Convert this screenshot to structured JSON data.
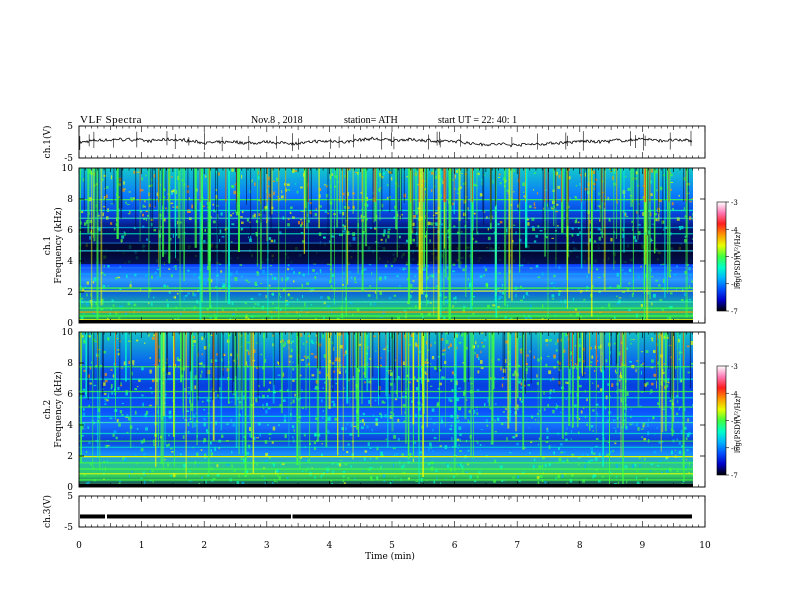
{
  "header": {
    "title": "VLF  Spectra",
    "date": "Nov.8  , 2018",
    "station": "station= ATH",
    "start": "start  UT  =    22: 40: 1"
  },
  "chart_data": [
    {
      "type": "line",
      "panel": "ch1-waveform",
      "ylabel": "ch.1(V)",
      "ylim": [
        -5,
        5
      ],
      "yticks": [
        "5",
        "-5"
      ],
      "xlim": [
        0,
        10
      ],
      "note": "noisy trace near 0 V with occasional spikes"
    },
    {
      "type": "heatmap",
      "panel": "ch1-spectrogram",
      "ylabel": "ch.1\nFrequency  (kHz)",
      "ylim": [
        0,
        10
      ],
      "yticks": [
        "0",
        "2",
        "4",
        "6",
        "8",
        "10"
      ],
      "xlim": [
        0,
        10
      ],
      "colorbar": {
        "label": "log(PSD)(V²/Hz)",
        "ticks": [
          "-3",
          "-4",
          "-5",
          "-6",
          "-7"
        ],
        "range": [
          -7,
          -3
        ]
      }
    },
    {
      "type": "heatmap",
      "panel": "ch2-spectrogram",
      "ylabel": "ch.2\nFrequency  (kHz)",
      "ylim": [
        0,
        10
      ],
      "yticks": [
        "0",
        "2",
        "4",
        "6",
        "8",
        "10"
      ],
      "xlim": [
        0,
        10
      ],
      "colorbar": {
        "label": "log(PSD)(V²/Hz)",
        "ticks": [
          "-3",
          "-4",
          "-5",
          "-6",
          "-7"
        ],
        "range": [
          -7,
          -3
        ]
      }
    },
    {
      "type": "line",
      "panel": "ch3-waveform",
      "ylabel": "ch.3(V)",
      "ylim": [
        -5,
        5
      ],
      "yticks": [
        "5",
        "-5"
      ],
      "xlim": [
        0,
        10
      ],
      "values_note": "constant trace at about -1.6 V",
      "level": -1.6
    }
  ],
  "xaxis": {
    "label": "Time  (min)",
    "ticks": [
      "0",
      "1",
      "2",
      "3",
      "4",
      "5",
      "6",
      "7",
      "8",
      "9",
      "10"
    ]
  },
  "colors": {
    "colormap": [
      "#000000",
      "#0000c8",
      "#0050ff",
      "#00b4ff",
      "#00ffc8",
      "#40ff40",
      "#e6ff00",
      "#ff9600",
      "#ff1e1e",
      "#ff78b4",
      "#ffffff"
    ]
  }
}
